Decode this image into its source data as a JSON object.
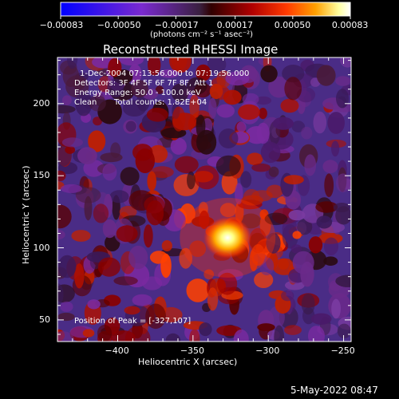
{
  "chart_data": {
    "type": "heatmap",
    "title": "Reconstructed RHESSI Image",
    "xlabel": "Heliocentric X (arcsec)",
    "ylabel": "Heliocentric Y (arcsec)",
    "xlim": [
      -440,
      -245
    ],
    "ylim": [
      35,
      232
    ],
    "x_ticks": [
      -400,
      -350,
      -300,
      -250
    ],
    "y_ticks": [
      50,
      100,
      150,
      200
    ],
    "x_tick_labels": [
      "−400",
      "−350",
      "−300",
      "−250"
    ],
    "y_tick_labels": [
      "50",
      "100",
      "150",
      "200"
    ],
    "peak": {
      "x": -327,
      "y": 107
    },
    "annotations": {
      "time_range": "1-Dec-2004 07:13:56.000 to 07:19:56.000",
      "detectors": "Detectors: 3F 4F 5F 6F 7F 8F, Att 1",
      "energy_range": "Energy Range: 50.0 - 100.0 keV",
      "method": "Clean",
      "total_counts": "Total counts: 1.82E+04",
      "peak_text": "Position of Peak = [-327,107]"
    },
    "colorbar": {
      "ticks": [
        -0.00083,
        -0.0005,
        -0.00017,
        0.00017,
        0.0005,
        0.00083
      ],
      "tick_labels": [
        "−0.00083",
        "−0.00050",
        "−0.00017",
        "0.00017",
        "0.00050",
        "0.00083"
      ],
      "units": "(photons cm⁻² s⁻¹ asec⁻²)",
      "range": [
        -0.00083,
        0.00083
      ],
      "colors": [
        "#0000ff",
        "#8a2be2",
        "#6a3a8a",
        "#330000",
        "#aa0000",
        "#ff3300",
        "#ff9900",
        "#ffff99",
        "#ffffff"
      ]
    }
  },
  "footer": {
    "date": "5-May-2022 08:47"
  }
}
